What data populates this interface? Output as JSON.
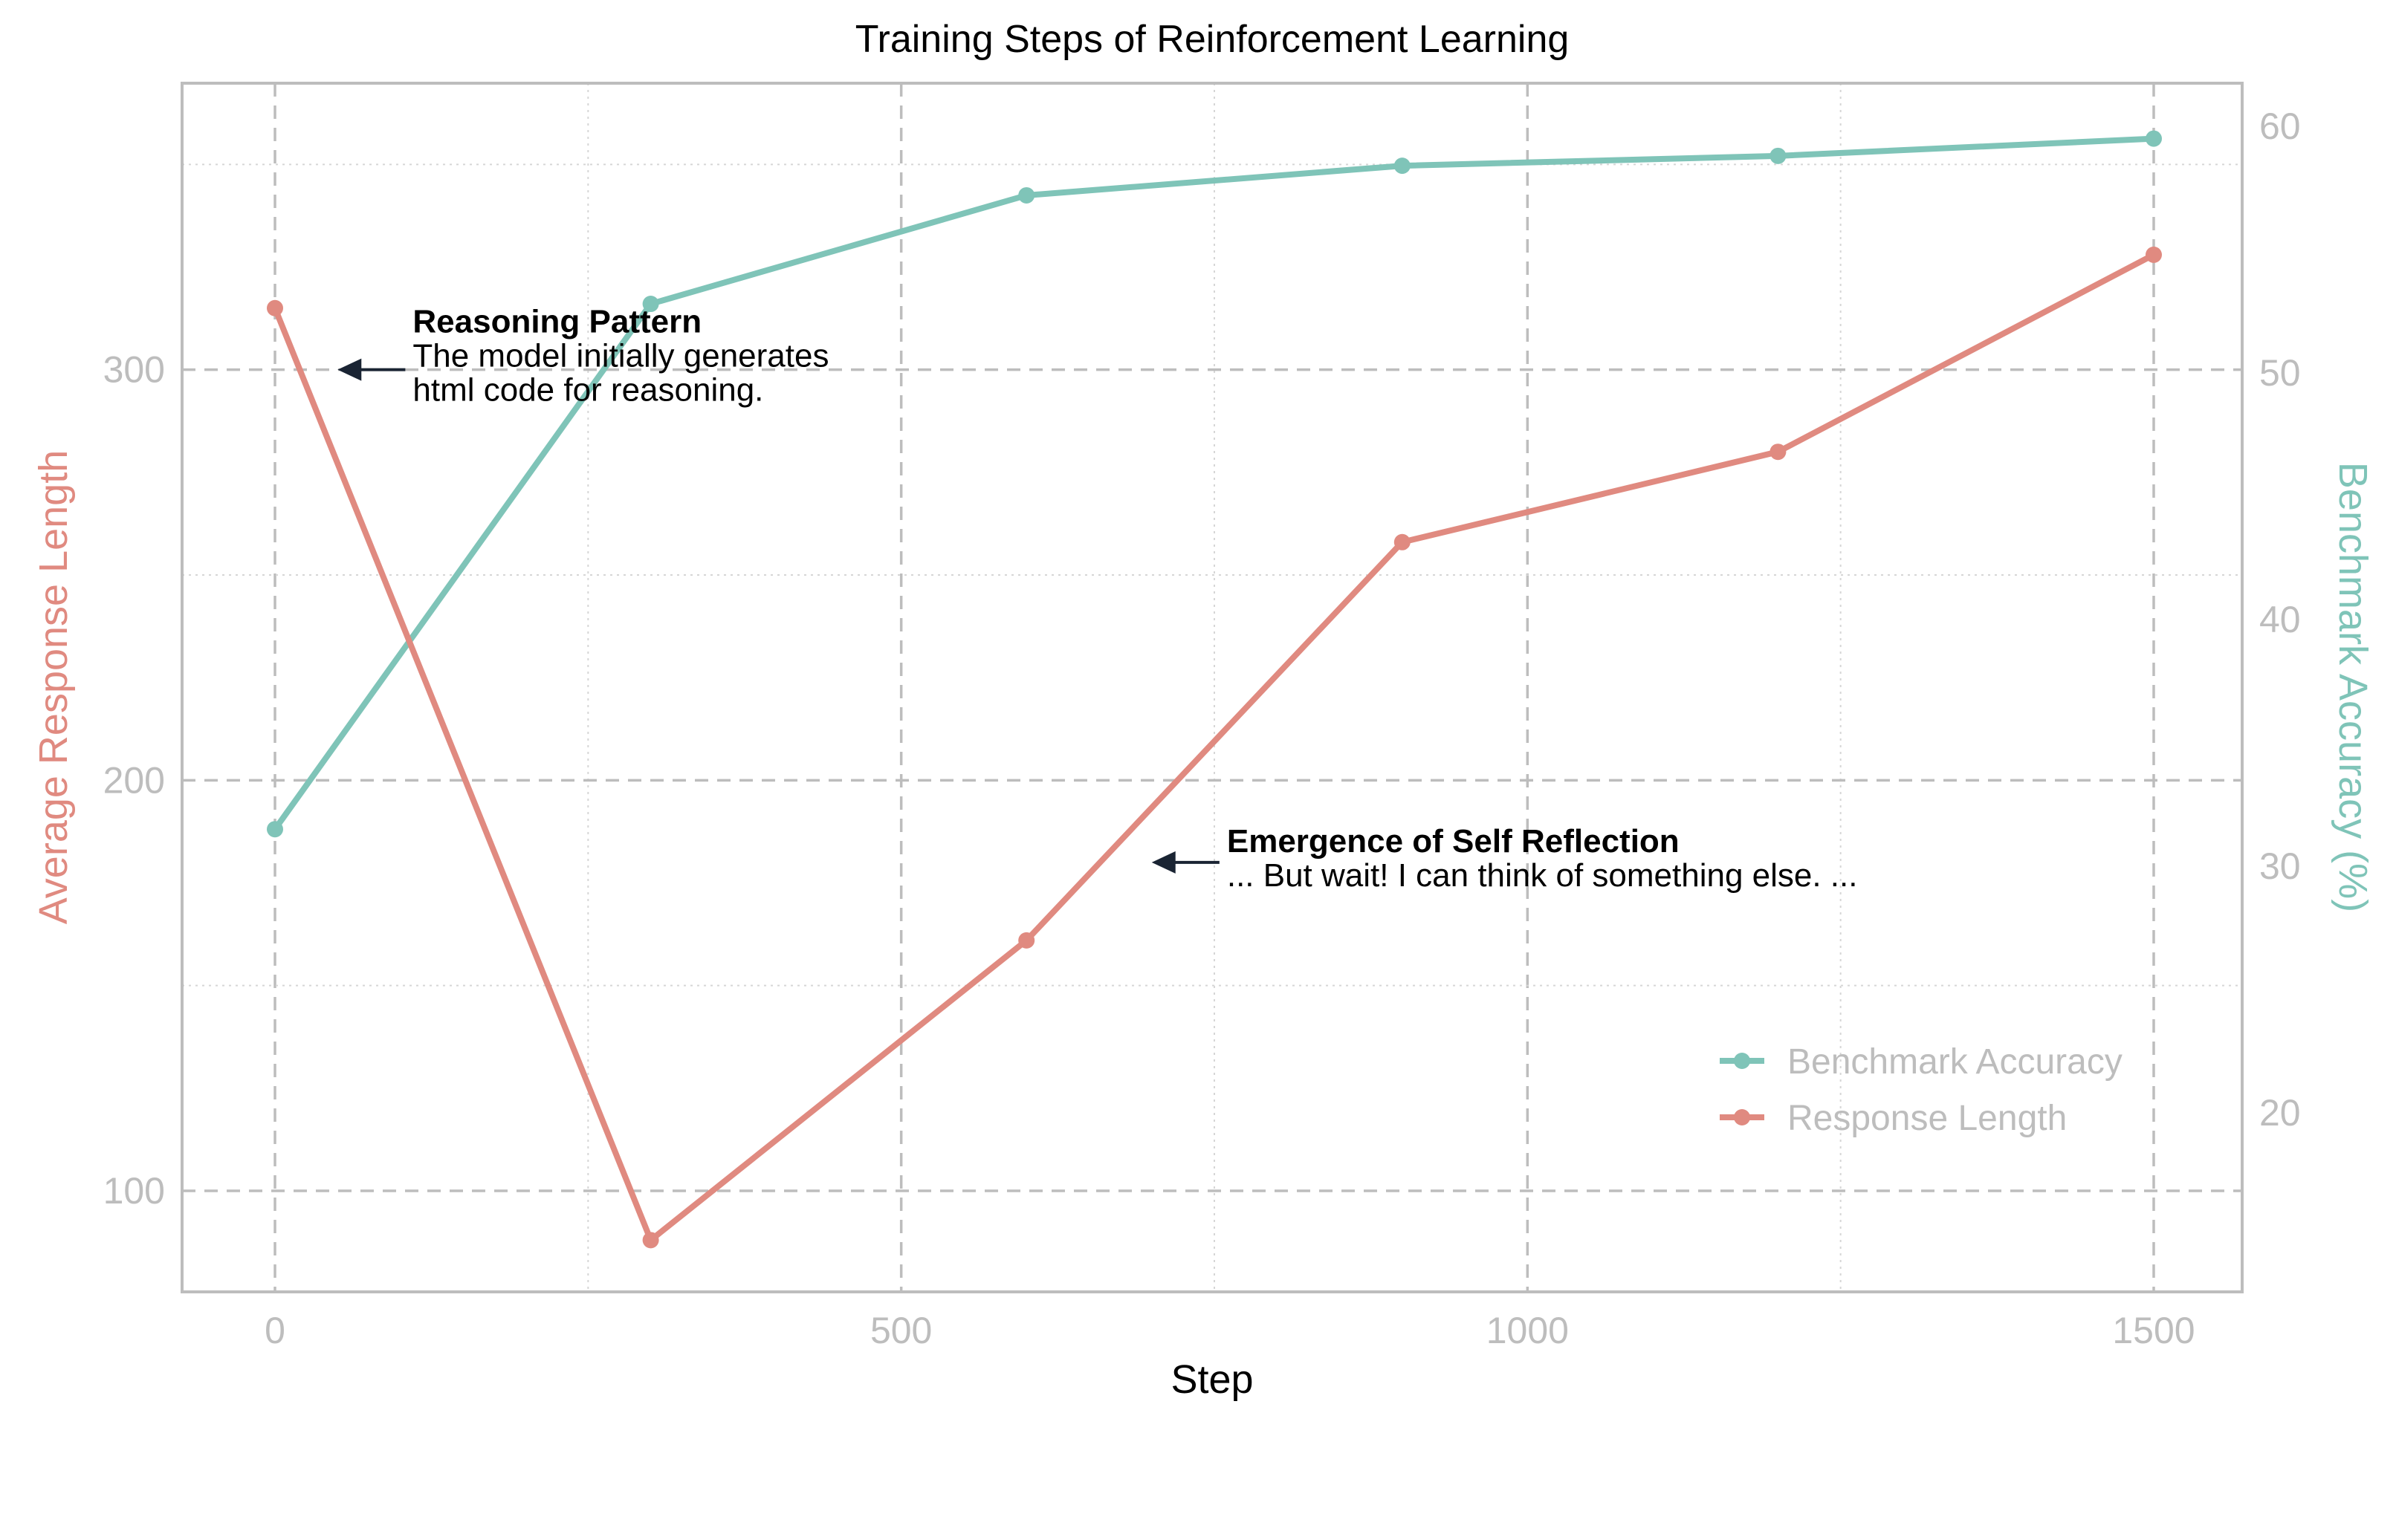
{
  "chart_data": {
    "type": "line",
    "title": "Training Steps of Reinforcement Learning",
    "xlabel": "Step",
    "ylabel_left": "Average Response Length",
    "ylabel_right": "Benchmark Accuracy (%)",
    "xlim": [
      -75,
      1575
    ],
    "ylim_left": [
      75,
      370
    ],
    "ylim_right": [
      13,
      62
    ],
    "x_ticks": [
      0,
      500,
      1000,
      1500
    ],
    "x_minor_ticks": [
      250,
      750,
      1250
    ],
    "y_left_ticks": [
      100,
      200,
      300
    ],
    "y_left_minor_ticks": [
      150,
      250,
      350
    ],
    "y_right_ticks": [
      20,
      30,
      40,
      50,
      60
    ],
    "grid": true,
    "legend_position": "lower-right",
    "series": [
      {
        "name": "Benchmark Accuracy",
        "axis": "right",
        "color": "#7fc4b8",
        "x": [
          0,
          300,
          600,
          900,
          1200,
          1500
        ],
        "y": [
          31.5,
          52.8,
          57.2,
          58.4,
          58.8,
          59.5
        ]
      },
      {
        "name": "Response Length",
        "axis": "left",
        "color": "#e08a80",
        "x": [
          0,
          300,
          600,
          900,
          1200,
          1500
        ],
        "y": [
          315,
          88,
          161,
          258,
          280,
          328
        ]
      }
    ],
    "annotations": [
      {
        "title": "Reasoning Pattern",
        "lines": [
          "The model initially generates",
          "html code for reasoning."
        ],
        "arrow_x": 50,
        "arrow_y": 300,
        "text_x": 110,
        "axis": "left"
      },
      {
        "title": "Emergence of Self Reflection",
        "lines": [
          "... But wait! I can think of something else. ..."
        ],
        "arrow_x": 700,
        "arrow_y": 180,
        "text_x": 760,
        "axis": "left"
      }
    ],
    "colors": {
      "left_axis_label": "#e08a80",
      "right_axis_label": "#7fc4b8",
      "tick_label": "#bdbdbd",
      "frame": "#bdbdbd",
      "arrow": "#1a2433"
    }
  }
}
